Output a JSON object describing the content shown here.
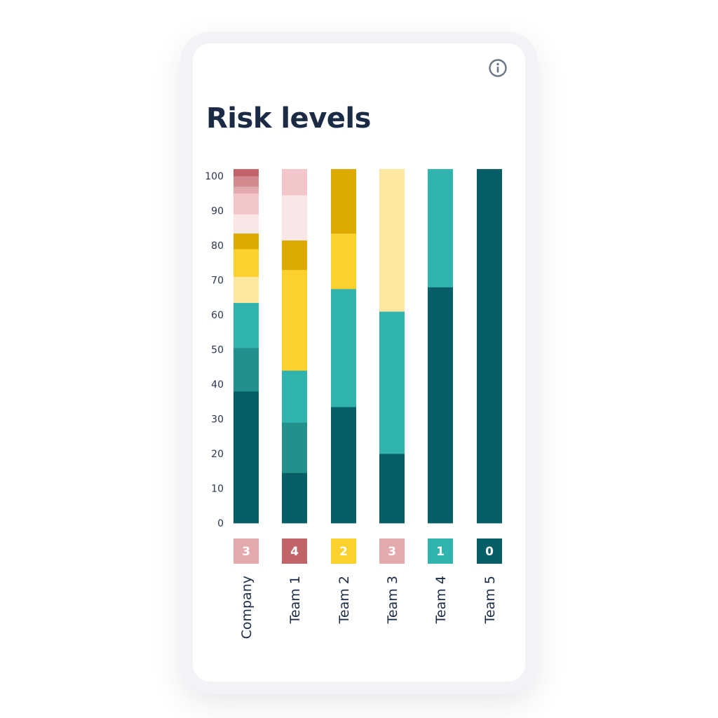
{
  "title": "Risk levels",
  "icons": {
    "info": "info-icon"
  },
  "colors": {
    "title_text": "#1b2b45",
    "axis_text": "#2a3650",
    "icon_stroke": "#6b7584"
  },
  "chart_data": {
    "type": "bar",
    "stacked": true,
    "title": "Risk levels",
    "xlabel": "",
    "ylabel": "",
    "ylim": [
      0,
      102
    ],
    "yticks": [
      0,
      10,
      20,
      30,
      40,
      50,
      60,
      70,
      80,
      90,
      100
    ],
    "grid": false,
    "legend": "none",
    "categories": [
      "Company",
      "Team 1",
      "Team 2",
      "Team 3",
      "Team 4",
      "Team 5"
    ],
    "badges": [
      {
        "value": "3",
        "color": "#e3aaae"
      },
      {
        "value": "4",
        "color": "#c0646a"
      },
      {
        "value": "2",
        "color": "#fcd12e"
      },
      {
        "value": "3",
        "color": "#e3aaae"
      },
      {
        "value": "1",
        "color": "#31b3ae"
      },
      {
        "value": "0",
        "color": "#085e67"
      }
    ],
    "bars": [
      {
        "category": "Company",
        "segments": [
          {
            "value": 38,
            "color": "#085e67"
          },
          {
            "value": 12.5,
            "color": "#22918b"
          },
          {
            "value": 13,
            "color": "#31b3ae"
          },
          {
            "value": 7.5,
            "color": "#fde8a0"
          },
          {
            "value": 8,
            "color": "#fcd12e"
          },
          {
            "value": 4.5,
            "color": "#ddaa00"
          },
          {
            "value": 5.5,
            "color": "#f9e6e7"
          },
          {
            "value": 6,
            "color": "#f3c7c9"
          },
          {
            "value": 2,
            "color": "#e3aaae"
          },
          {
            "value": 3,
            "color": "#d28a8f"
          },
          {
            "value": 2,
            "color": "#c0646a"
          }
        ]
      },
      {
        "category": "Team 1",
        "segments": [
          {
            "value": 14.5,
            "color": "#085e67"
          },
          {
            "value": 14.5,
            "color": "#22918b"
          },
          {
            "value": 15,
            "color": "#31b3ae"
          },
          {
            "value": 29,
            "color": "#fcd12e"
          },
          {
            "value": 8.5,
            "color": "#ddaa00"
          },
          {
            "value": 13,
            "color": "#f9e6e7"
          },
          {
            "value": 7.5,
            "color": "#f3c7c9"
          }
        ]
      },
      {
        "category": "Team 2",
        "segments": [
          {
            "value": 33.5,
            "color": "#085e67"
          },
          {
            "value": 34,
            "color": "#31b3ae"
          },
          {
            "value": 16,
            "color": "#fcd12e"
          },
          {
            "value": 18.5,
            "color": "#ddaa00"
          }
        ]
      },
      {
        "category": "Team 3",
        "segments": [
          {
            "value": 20,
            "color": "#085e67"
          },
          {
            "value": 41,
            "color": "#31b3ae"
          },
          {
            "value": 41,
            "color": "#fde8a0"
          }
        ]
      },
      {
        "category": "Team 4",
        "segments": [
          {
            "value": 68,
            "color": "#085e67"
          },
          {
            "value": 34,
            "color": "#31b3ae"
          }
        ]
      },
      {
        "category": "Team 5",
        "segments": [
          {
            "value": 102,
            "color": "#085e67"
          }
        ]
      }
    ]
  }
}
